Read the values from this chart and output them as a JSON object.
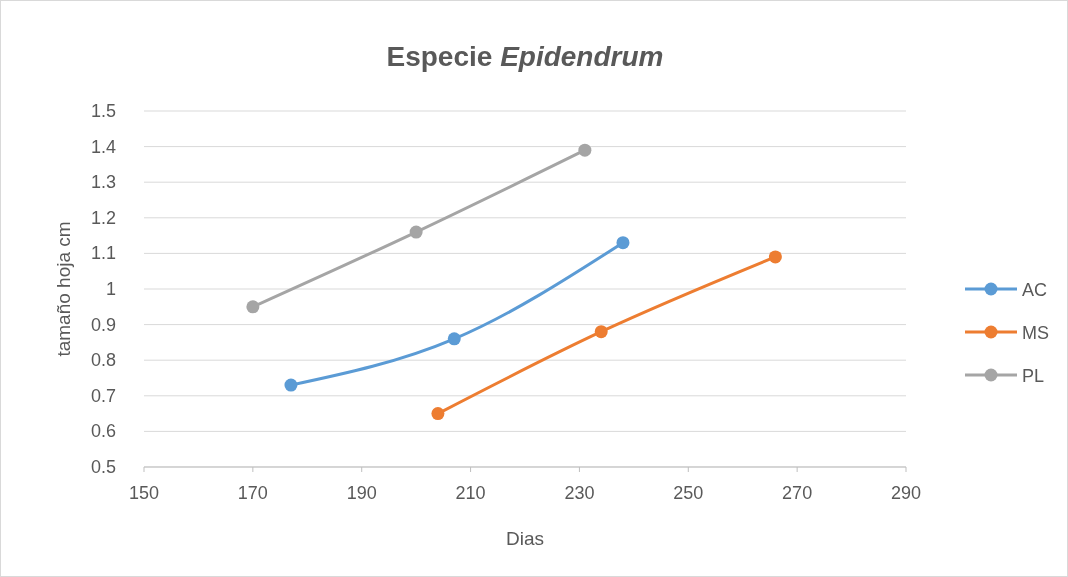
{
  "chart_data": {
    "type": "line",
    "title": "Especie Epidendrum",
    "xlabel": "Dias",
    "ylabel": "tamaño hoja cm",
    "xlim": [
      150,
      290
    ],
    "xticks": [
      150,
      170,
      190,
      210,
      230,
      250,
      270,
      290
    ],
    "ylim": [
      0.5,
      1.5
    ],
    "yticks": [
      0.5,
      0.6,
      0.7,
      0.8,
      0.9,
      1,
      1.1,
      1.2,
      1.3,
      1.4,
      1.5
    ],
    "grid": "y",
    "legend": "right",
    "marker": "circle",
    "line_style": "solid",
    "series": [
      {
        "name": "AC",
        "color": "#5b9bd5",
        "x": [
          177,
          207,
          238
        ],
        "values": [
          0.73,
          0.86,
          1.13
        ]
      },
      {
        "name": "MS",
        "color": "#ed7d31",
        "x": [
          204,
          234,
          266
        ],
        "values": [
          0.65,
          0.88,
          1.09
        ]
      },
      {
        "name": "PL",
        "color": "#a5a5a5",
        "x": [
          170,
          200,
          231
        ],
        "values": [
          0.95,
          1.16,
          1.39
        ]
      }
    ]
  }
}
